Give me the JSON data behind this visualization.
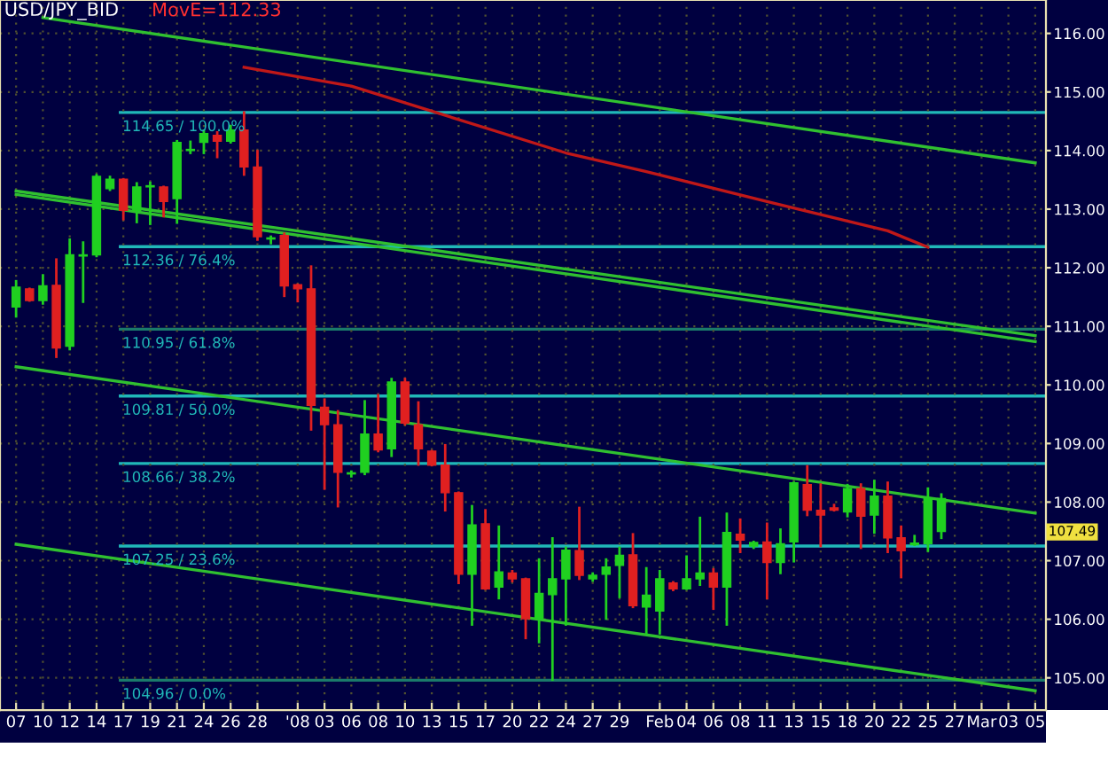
{
  "chart_data": {
    "type": "candlestick",
    "title": "USD/JPY_BID",
    "annotations": [
      "MovE=112.33",
      {
        "text": "107.49",
        "y": 107.49
      }
    ],
    "categories": [
      "07",
      null,
      "10",
      null,
      "12",
      null,
      "14",
      null,
      "17",
      null,
      "19",
      null,
      "21",
      null,
      "24",
      null,
      "26",
      null,
      "28",
      null,
      null,
      "'08",
      null,
      "03",
      null,
      "06",
      null,
      "08",
      null,
      "10",
      null,
      "13",
      null,
      "15",
      null,
      "17",
      null,
      "20",
      null,
      "22",
      null,
      "24",
      null,
      "27",
      null,
      "29",
      null,
      null,
      "Feb",
      null,
      "04",
      null,
      "06",
      null,
      "08",
      null,
      "11",
      null,
      "13",
      null,
      "15",
      null,
      "18",
      null,
      "20",
      null,
      "22",
      null,
      "25",
      null,
      "27",
      null,
      "Mar",
      null,
      "03",
      null,
      "05"
    ],
    "ohlc": [
      [
        111.33,
        111.77,
        111.17,
        111.67
      ],
      [
        111.64,
        111.64,
        111.44,
        111.44
      ],
      [
        111.44,
        111.87,
        111.39,
        111.69
      ],
      [
        111.7,
        112.14,
        110.48,
        110.63
      ],
      [
        110.66,
        112.48,
        110.61,
        112.22
      ],
      [
        112.2,
        112.43,
        111.42,
        112.22
      ],
      [
        112.22,
        113.58,
        112.2,
        113.56
      ],
      [
        113.35,
        113.55,
        113.33,
        113.51
      ],
      [
        113.51,
        113.51,
        112.83,
        112.98
      ],
      [
        112.98,
        113.44,
        112.78,
        113.38
      ],
      [
        113.38,
        113.45,
        112.75,
        113.4
      ],
      [
        113.38,
        113.38,
        112.88,
        113.13
      ],
      [
        113.18,
        114.16,
        112.77,
        114.14
      ],
      [
        114.0,
        114.15,
        113.96,
        114.02
      ],
      [
        114.14,
        114.34,
        113.96,
        114.29
      ],
      [
        114.26,
        114.31,
        113.89,
        114.16
      ],
      [
        114.16,
        114.42,
        114.14,
        114.35
      ],
      [
        114.35,
        114.65,
        113.59,
        113.72
      ],
      [
        113.72,
        113.99,
        112.48,
        112.53
      ],
      [
        112.49,
        112.53,
        112.42,
        112.5
      ],
      [
        112.55,
        112.58,
        111.52,
        111.69
      ],
      [
        111.71,
        111.71,
        111.43,
        111.64
      ],
      [
        111.64,
        112.02,
        109.24,
        109.65
      ],
      [
        109.62,
        109.75,
        108.23,
        109.32
      ],
      [
        109.32,
        109.55,
        107.93,
        108.51
      ],
      [
        108.48,
        108.52,
        108.44,
        108.5
      ],
      [
        108.51,
        109.72,
        108.48,
        109.16
      ],
      [
        109.16,
        109.82,
        108.87,
        108.89
      ],
      [
        108.91,
        110.1,
        108.79,
        110.05
      ],
      [
        110.05,
        110.1,
        109.33,
        109.35
      ],
      [
        109.32,
        109.7,
        108.64,
        108.91
      ],
      [
        108.87,
        108.87,
        108.63,
        108.63
      ],
      [
        108.63,
        108.97,
        107.86,
        108.16
      ],
      [
        108.16,
        108.16,
        106.62,
        106.77
      ],
      [
        106.77,
        107.93,
        105.91,
        107.61
      ],
      [
        107.63,
        107.86,
        106.52,
        106.52
      ],
      [
        106.55,
        107.58,
        106.36,
        106.81
      ],
      [
        106.79,
        106.82,
        106.65,
        106.69
      ],
      [
        106.69,
        106.69,
        105.68,
        106.01
      ],
      [
        106.01,
        107.02,
        105.61,
        106.44
      ],
      [
        106.42,
        107.38,
        104.97,
        106.69
      ],
      [
        106.69,
        107.22,
        105.91,
        107.18
      ],
      [
        107.17,
        107.9,
        106.69,
        106.75
      ],
      [
        106.69,
        106.78,
        106.66,
        106.75
      ],
      [
        106.77,
        107.02,
        106.01,
        106.89
      ],
      [
        106.92,
        107.22,
        106.38,
        107.09
      ],
      [
        107.1,
        107.45,
        106.21,
        106.23
      ],
      [
        106.21,
        106.87,
        105.76,
        106.41
      ],
      [
        106.14,
        106.82,
        105.76,
        106.69
      ],
      [
        106.62,
        106.63,
        106.5,
        106.52
      ],
      [
        106.52,
        107.07,
        106.52,
        106.69
      ],
      [
        106.69,
        107.73,
        106.59,
        106.79
      ],
      [
        106.79,
        106.85,
        106.18,
        106.55
      ],
      [
        106.55,
        107.8,
        105.91,
        107.48
      ],
      [
        107.45,
        107.7,
        107.15,
        107.35
      ],
      [
        107.25,
        107.32,
        107.22,
        107.31
      ],
      [
        107.32,
        107.63,
        106.36,
        106.97
      ],
      [
        106.97,
        107.53,
        106.79,
        107.29
      ],
      [
        107.32,
        108.33,
        106.99,
        108.33
      ],
      [
        108.3,
        108.61,
        107.78,
        107.86
      ],
      [
        107.86,
        108.3,
        107.25,
        107.78
      ],
      [
        107.9,
        107.95,
        107.86,
        107.86
      ],
      [
        107.83,
        108.29,
        107.76,
        108.23
      ],
      [
        108.23,
        108.3,
        107.22,
        107.76
      ],
      [
        107.78,
        108.36,
        107.48,
        108.1
      ],
      [
        108.1,
        108.33,
        107.15,
        107.39
      ],
      [
        107.39,
        107.58,
        106.72,
        107.17
      ],
      [
        107.27,
        107.42,
        107.27,
        107.3
      ],
      [
        107.29,
        108.23,
        107.17,
        108.06
      ],
      [
        107.5,
        108.13,
        107.39,
        108.06
      ],
      null,
      null,
      null,
      null,
      null,
      null,
      null
    ],
    "series": [
      {
        "type": "line",
        "color": "#c01818",
        "values": [
          null,
          null,
          null,
          null,
          null,
          null,
          null,
          null,
          null,
          null,
          null,
          null,
          null,
          null,
          null,
          null,
          null,
          115.42,
          null,
          null,
          null,
          null,
          null,
          null,
          null,
          115.1,
          null,
          null,
          null,
          null,
          null,
          null,
          null,
          null,
          null,
          null,
          null,
          null,
          null,
          null,
          null,
          113.96,
          null,
          null,
          null,
          null,
          null,
          113.64,
          null,
          null,
          null,
          null,
          null,
          null,
          null,
          null,
          113.13,
          null,
          null,
          null,
          null,
          null,
          null,
          null,
          null,
          112.63,
          null,
          null,
          112.35,
          null,
          null,
          null,
          null,
          null,
          null,
          null,
          null
        ]
      },
      {
        "type": "line",
        "color": "#30c030",
        "values": [
          null,
          null,
          116.27,
          null,
          null,
          null,
          null,
          null,
          null,
          null,
          null,
          null,
          null,
          null,
          null,
          null,
          null,
          null,
          null,
          null,
          null,
          null,
          null,
          null,
          null,
          null,
          null,
          null,
          null,
          null,
          null,
          null,
          null,
          null,
          null,
          null,
          null,
          null,
          null,
          null,
          null,
          null,
          null,
          null,
          null,
          null,
          null,
          null,
          null,
          null,
          null,
          null,
          null,
          null,
          null,
          null,
          null,
          null,
          null,
          null,
          null,
          null,
          null,
          null,
          null,
          null,
          null,
          null,
          null,
          null,
          null,
          null,
          null,
          null,
          null,
          null,
          113.79
        ]
      },
      {
        "type": "line",
        "color": "#30c030",
        "values": [
          113.31,
          null,
          null,
          null,
          null,
          null,
          null,
          null,
          null,
          null,
          null,
          null,
          null,
          null,
          null,
          null,
          null,
          null,
          null,
          null,
          null,
          null,
          null,
          null,
          null,
          null,
          null,
          null,
          null,
          null,
          null,
          null,
          null,
          null,
          null,
          null,
          null,
          null,
          null,
          null,
          null,
          null,
          null,
          null,
          null,
          null,
          null,
          null,
          null,
          null,
          null,
          null,
          null,
          null,
          null,
          null,
          null,
          null,
          null,
          null,
          null,
          null,
          null,
          null,
          null,
          null,
          null,
          null,
          null,
          null,
          null,
          null,
          null,
          null,
          null,
          null,
          110.84
        ]
      },
      {
        "type": "line",
        "color": "#30c030",
        "values": [
          113.25,
          null,
          null,
          null,
          null,
          null,
          null,
          null,
          null,
          null,
          null,
          null,
          null,
          null,
          null,
          null,
          null,
          null,
          null,
          null,
          null,
          null,
          null,
          null,
          null,
          null,
          null,
          null,
          null,
          null,
          null,
          null,
          null,
          null,
          null,
          null,
          null,
          null,
          null,
          null,
          null,
          null,
          null,
          null,
          null,
          null,
          null,
          null,
          null,
          null,
          null,
          null,
          null,
          null,
          null,
          null,
          null,
          null,
          null,
          null,
          null,
          null,
          null,
          null,
          null,
          null,
          null,
          null,
          null,
          null,
          null,
          null,
          null,
          null,
          null,
          null,
          110.74
        ]
      },
      {
        "type": "line",
        "color": "#30c030",
        "values": [
          110.31,
          null,
          null,
          null,
          null,
          null,
          null,
          null,
          null,
          null,
          null,
          null,
          null,
          null,
          null,
          null,
          null,
          null,
          null,
          null,
          null,
          null,
          null,
          null,
          null,
          null,
          null,
          null,
          null,
          null,
          null,
          null,
          null,
          null,
          null,
          null,
          null,
          null,
          null,
          null,
          null,
          null,
          null,
          null,
          null,
          null,
          null,
          null,
          null,
          null,
          null,
          null,
          null,
          null,
          null,
          null,
          null,
          null,
          null,
          null,
          null,
          null,
          null,
          null,
          null,
          null,
          null,
          null,
          null,
          null,
          null,
          null,
          null,
          null,
          null,
          null,
          107.81
        ]
      },
      {
        "type": "line",
        "color": "#30c030",
        "values": [
          107.28,
          null,
          null,
          null,
          null,
          null,
          null,
          null,
          null,
          null,
          null,
          null,
          null,
          null,
          null,
          null,
          null,
          null,
          null,
          null,
          null,
          null,
          null,
          null,
          null,
          null,
          null,
          null,
          null,
          null,
          null,
          null,
          null,
          null,
          null,
          null,
          null,
          null,
          null,
          null,
          null,
          null,
          null,
          null,
          null,
          null,
          null,
          null,
          null,
          null,
          null,
          null,
          null,
          null,
          null,
          null,
          null,
          null,
          null,
          null,
          null,
          null,
          null,
          null,
          null,
          null,
          null,
          null,
          null,
          null,
          null,
          null,
          null,
          null,
          null,
          null,
          104.78
        ]
      }
    ],
    "ref_lines": [
      {
        "axis": "y",
        "value": 114.65,
        "label": "114.65 / 100.0%",
        "color": "#20b8b8"
      },
      {
        "axis": "y",
        "value": 112.36,
        "label": "112.36 / 76.4%",
        "color": "#20b8b8"
      },
      {
        "axis": "y",
        "value": 110.95,
        "label": "110.95 / 61.8%",
        "color": "#1a7a6a"
      },
      {
        "axis": "y",
        "value": 109.81,
        "label": "109.81 / 50.0%",
        "color": "#20b8b8"
      },
      {
        "axis": "y",
        "value": 108.66,
        "label": "108.66 / 38.2%",
        "color": "#20b8b8"
      },
      {
        "axis": "y",
        "value": 107.25,
        "label": "107.25 / 23.6%",
        "color": "#20b8b8"
      },
      {
        "axis": "y",
        "value": 104.96,
        "label": "104.96 / 0.0%",
        "color": "#1a7a6a"
      }
    ],
    "ylim": [
      104.45,
      116.57
    ],
    "yticks": [
      {
        "value": 105,
        "label": "105.00"
      },
      {
        "value": 106,
        "label": "106.00"
      },
      {
        "value": 107,
        "label": "107.00"
      },
      {
        "value": 108,
        "label": "108.00"
      },
      {
        "value": 109,
        "label": "109.00"
      },
      {
        "value": 110,
        "label": "110.00"
      },
      {
        "value": 111,
        "label": "111.00"
      },
      {
        "value": 112,
        "label": "112.00"
      },
      {
        "value": 113,
        "label": "113.00"
      },
      {
        "value": 114,
        "label": "114.00"
      },
      {
        "value": 115,
        "label": "115.00"
      },
      {
        "value": 116,
        "label": "116.00"
      }
    ],
    "grid": true
  }
}
